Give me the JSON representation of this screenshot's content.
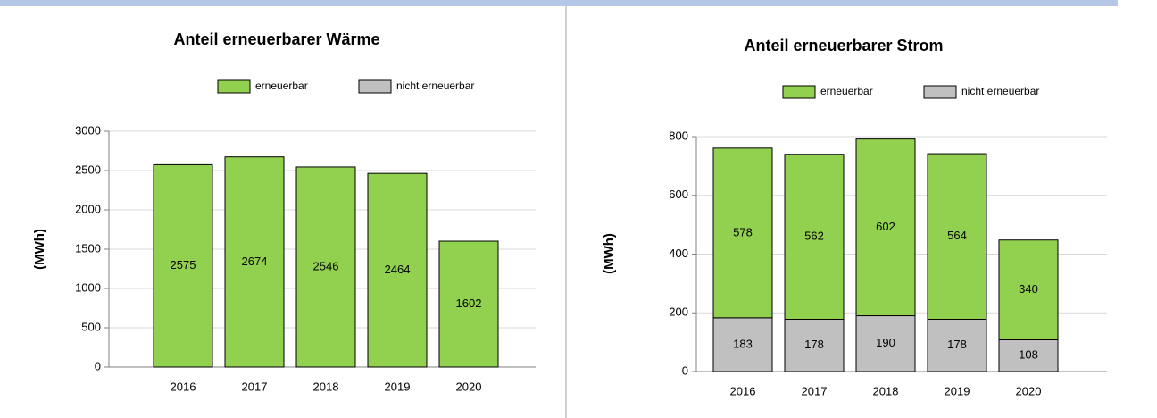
{
  "chart_data": [
    {
      "type": "bar",
      "stacked": true,
      "title": "Anteil erneuerbarer Wärme",
      "ylabel": "(MWh)",
      "categories": [
        "2016",
        "2017",
        "2018",
        "2019",
        "2020"
      ],
      "series": [
        {
          "name": "nicht erneuerbar",
          "color": "#c0c0c0",
          "values": [
            0,
            0,
            0,
            0,
            0
          ]
        },
        {
          "name": "erneuerbar",
          "color": "#92d050",
          "values": [
            2575,
            2674,
            2546,
            2464,
            1602
          ]
        }
      ],
      "ylim": [
        0,
        3000
      ],
      "yticks": [
        0,
        500,
        1000,
        1500,
        2000,
        2500,
        3000
      ],
      "grid": true,
      "legend": "top"
    },
    {
      "type": "bar",
      "stacked": true,
      "title": "Anteil erneuerbarer Strom",
      "ylabel": "(MWh)",
      "categories": [
        "2016",
        "2017",
        "2018",
        "2019",
        "2020"
      ],
      "series": [
        {
          "name": "nicht erneuerbar",
          "color": "#c0c0c0",
          "values": [
            183,
            178,
            190,
            178,
            108
          ]
        },
        {
          "name": "erneuerbar",
          "color": "#92d050",
          "values": [
            578,
            562,
            602,
            564,
            340
          ]
        }
      ],
      "ylim": [
        0,
        800
      ],
      "yticks": [
        0,
        200,
        400,
        600,
        800
      ],
      "grid": true,
      "legend": "top"
    }
  ]
}
